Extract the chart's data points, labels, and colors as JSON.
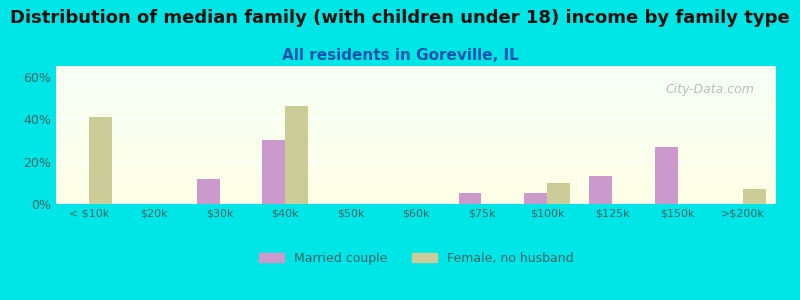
{
  "title": "Distribution of median family (with children under 18) income by family type",
  "subtitle": "All residents in Goreville, IL",
  "categories": [
    "< $10k",
    "$20k",
    "$30k",
    "$40k",
    "$50k",
    "$60k",
    "$75k",
    "$100k",
    "$125k",
    "$150k",
    ">$200k"
  ],
  "married_couple": [
    0,
    0,
    12,
    30,
    0,
    0,
    5,
    5,
    13,
    27,
    0
  ],
  "female_no_husband": [
    41,
    0,
    0,
    46,
    0,
    0,
    0,
    10,
    0,
    0,
    7
  ],
  "married_color": "#cc99cc",
  "female_color": "#cccc99",
  "background_color": "#00e5e5",
  "plot_bg_start": "#f5fff5",
  "plot_bg_end": "#fffff5",
  "ylabel_ticks": [
    "0%",
    "20%",
    "40%",
    "60%"
  ],
  "yticks": [
    0,
    20,
    40,
    60
  ],
  "ylim": [
    0,
    65
  ],
  "title_fontsize": 13,
  "subtitle_fontsize": 11,
  "watermark": "City-Data.com",
  "bar_width": 0.35
}
